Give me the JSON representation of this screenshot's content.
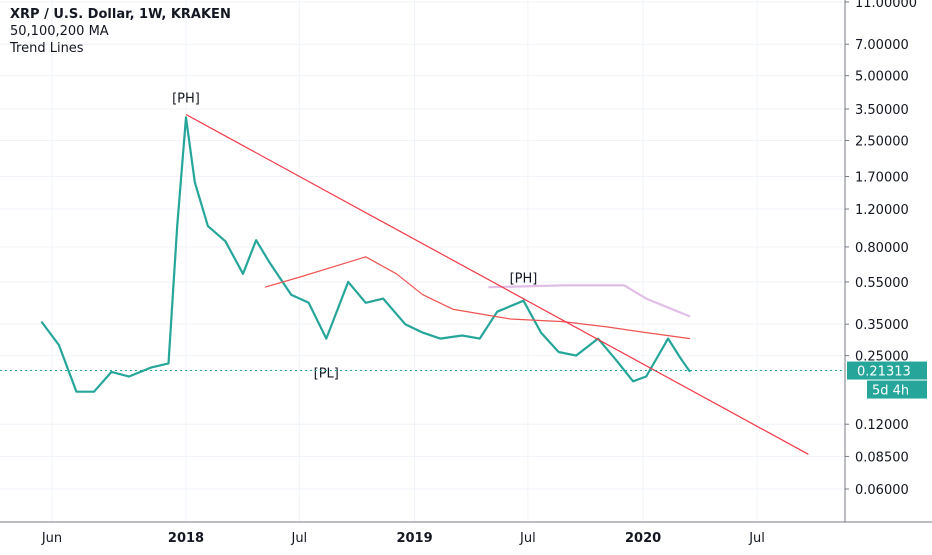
{
  "legend": {
    "title": "XRP / U.S. Dollar, 1W, KRAKEN",
    "line2": "50,100,200 MA",
    "line3": "Trend Lines"
  },
  "price_badge": {
    "value": "0.21313",
    "countdown": "5d 4h",
    "color": "#26a69a"
  },
  "chart_data": {
    "type": "line",
    "title": "XRP / U.S. Dollar, 1W, KRAKEN",
    "scale": "log",
    "ylim": [
      0.042,
      12.0
    ],
    "y_ticks": [
      "11.00000",
      "7.00000",
      "5.00000",
      "3.50000",
      "2.50000",
      "1.70000",
      "1.20000",
      "0.80000",
      "0.55000",
      "0.35000",
      "0.25000",
      "0.12000",
      "0.08500",
      "0.06000"
    ],
    "x_ticks": [
      "Jun",
      "2018",
      "Jul",
      "2019",
      "Jul",
      "2020",
      "Jul"
    ],
    "annotations": [
      {
        "text": "[PH]",
        "date": "2018-01-01",
        "price": 3.3
      },
      {
        "text": "[PH]",
        "date": "2019-06-24",
        "price": 0.48
      },
      {
        "text": "[PL]",
        "date": "2018-08-13",
        "price": 0.25
      }
    ],
    "series": [
      {
        "name": "XRP / U.S. Dollar",
        "color": "#26a69a",
        "points": [
          [
            "2017-05-15",
            0.36
          ],
          [
            "2017-06-12",
            0.28
          ],
          [
            "2017-07-10",
            0.17
          ],
          [
            "2017-08-07",
            0.17
          ],
          [
            "2017-09-04",
            0.21
          ],
          [
            "2017-10-02",
            0.2
          ],
          [
            "2017-11-06",
            0.22
          ],
          [
            "2017-12-04",
            0.23
          ],
          [
            "2017-12-18",
            1.0
          ],
          [
            "2018-01-01",
            3.2
          ],
          [
            "2018-01-15",
            1.6
          ],
          [
            "2018-02-05",
            1.0
          ],
          [
            "2018-03-05",
            0.85
          ],
          [
            "2018-04-02",
            0.6
          ],
          [
            "2018-04-23",
            0.86
          ],
          [
            "2018-05-14",
            0.68
          ],
          [
            "2018-06-18",
            0.48
          ],
          [
            "2018-07-16",
            0.44
          ],
          [
            "2018-08-13",
            0.3
          ],
          [
            "2018-09-17",
            0.55
          ],
          [
            "2018-10-15",
            0.44
          ],
          [
            "2018-11-12",
            0.46
          ],
          [
            "2018-12-17",
            0.35
          ],
          [
            "2019-01-14",
            0.32
          ],
          [
            "2019-02-11",
            0.3
          ],
          [
            "2019-03-18",
            0.31
          ],
          [
            "2019-04-15",
            0.3
          ],
          [
            "2019-05-13",
            0.4
          ],
          [
            "2019-06-24",
            0.45
          ],
          [
            "2019-07-22",
            0.32
          ],
          [
            "2019-08-19",
            0.26
          ],
          [
            "2019-09-16",
            0.25
          ],
          [
            "2019-10-21",
            0.3
          ],
          [
            "2019-11-18",
            0.24
          ],
          [
            "2019-12-16",
            0.19
          ],
          [
            "2020-01-06",
            0.2
          ],
          [
            "2020-02-10",
            0.3
          ],
          [
            "2020-03-02",
            0.24
          ],
          [
            "2020-03-16",
            0.21
          ]
        ]
      },
      {
        "name": "MA 50",
        "color": "#ef5350",
        "points": [
          [
            "2018-05-07",
            0.52
          ],
          [
            "2018-07-02",
            0.58
          ],
          [
            "2018-09-03",
            0.66
          ],
          [
            "2018-10-15",
            0.72
          ],
          [
            "2018-12-03",
            0.6
          ],
          [
            "2019-01-14",
            0.48
          ],
          [
            "2019-03-04",
            0.41
          ],
          [
            "2019-06-03",
            0.37
          ],
          [
            "2019-08-26",
            0.36
          ],
          [
            "2019-11-04",
            0.34
          ],
          [
            "2020-01-06",
            0.32
          ],
          [
            "2020-03-16",
            0.3
          ]
        ]
      },
      {
        "name": "MA 200",
        "color": "#e1bee7",
        "points": [
          [
            "2019-04-29",
            0.52
          ],
          [
            "2019-08-26",
            0.53
          ],
          [
            "2019-12-02",
            0.53
          ],
          [
            "2020-01-06",
            0.46
          ],
          [
            "2020-03-16",
            0.38
          ]
        ]
      },
      {
        "name": "Trend Line",
        "color": "#f23645",
        "points": [
          [
            "2018-01-01",
            3.3
          ],
          [
            "2020-09-21",
            0.087
          ]
        ]
      }
    ]
  }
}
